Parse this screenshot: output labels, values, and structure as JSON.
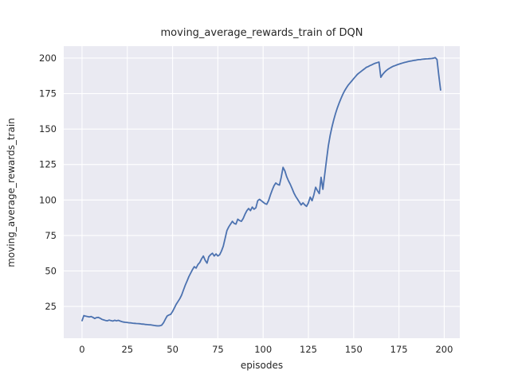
{
  "chart_data": {
    "type": "line",
    "title": "moving_average_rewards_train of DQN",
    "xlabel": "episodes",
    "ylabel": "moving_average_rewards_train",
    "x_ticks": [
      0,
      25,
      50,
      75,
      100,
      125,
      150,
      175,
      200
    ],
    "y_ticks": [
      25,
      50,
      75,
      100,
      125,
      150,
      175,
      200
    ],
    "xlim": [
      -10.1,
      208.6
    ],
    "ylim": [
      2.6,
      208.4
    ],
    "grid": "on",
    "legend": "none",
    "colors": {
      "line": "#4c72b0",
      "plot_background": "#eaeaf2",
      "grid": "#ffffff",
      "text": "#262626"
    },
    "series_name": "moving_average_rewards_train",
    "x": [
      0,
      1,
      2,
      3,
      4,
      5,
      6,
      7,
      8,
      9,
      10,
      11,
      12,
      13,
      14,
      15,
      16,
      17,
      18,
      19,
      20,
      21,
      22,
      23,
      24,
      25,
      26,
      27,
      28,
      29,
      30,
      31,
      32,
      33,
      34,
      35,
      36,
      37,
      38,
      39,
      40,
      41,
      42,
      43,
      44,
      45,
      46,
      47,
      48,
      49,
      50,
      51,
      52,
      53,
      54,
      55,
      56,
      57,
      58,
      59,
      60,
      61,
      62,
      63,
      64,
      65,
      66,
      67,
      68,
      69,
      70,
      71,
      72,
      73,
      74,
      75,
      76,
      77,
      78,
      79,
      80,
      81,
      82,
      83,
      84,
      85,
      86,
      87,
      88,
      89,
      90,
      91,
      92,
      93,
      94,
      95,
      96,
      97,
      98,
      99,
      100,
      101,
      102,
      103,
      104,
      105,
      106,
      107,
      108,
      109,
      110,
      111,
      112,
      113,
      114,
      115,
      116,
      117,
      118,
      119,
      120,
      121,
      122,
      123,
      124,
      125,
      126,
      127,
      128,
      129,
      130,
      131,
      132,
      133,
      134,
      135,
      136,
      137,
      138,
      139,
      140,
      141,
      142,
      143,
      144,
      145,
      146,
      147,
      148,
      149,
      150,
      151,
      152,
      153,
      154,
      155,
      156,
      157,
      158,
      159,
      160,
      161,
      162,
      163,
      164,
      165,
      166,
      167,
      168,
      169,
      170,
      171,
      172,
      173,
      174,
      175,
      176,
      177,
      178,
      179,
      180,
      181,
      182,
      183,
      184,
      185,
      186,
      187,
      188,
      189,
      190,
      191,
      192,
      193,
      194,
      195,
      196,
      197,
      198
    ],
    "values": [
      15,
      18.5,
      18.2,
      17.9,
      17.6,
      17.9,
      17.3,
      16.5,
      17.1,
      17.3,
      16.7,
      15.9,
      15.5,
      15.1,
      14.9,
      15.4,
      15,
      14.7,
      15.3,
      14.8,
      15.2,
      14.7,
      14.3,
      14,
      13.8,
      13.7,
      13.5,
      13.4,
      13.2,
      13.1,
      13,
      12.9,
      12.8,
      12.6,
      12.5,
      12.3,
      12.2,
      12.1,
      12,
      11.8,
      11.6,
      11.4,
      11.3,
      11.4,
      11.8,
      13.5,
      16,
      18.3,
      19,
      19.5,
      21.5,
      24,
      26.5,
      28.5,
      30.5,
      33,
      36.5,
      40,
      43,
      46,
      48.5,
      51,
      53,
      52,
      54.5,
      56,
      58.5,
      60.5,
      57.5,
      55.5,
      60,
      61.5,
      62.5,
      60.5,
      62,
      60.5,
      61.5,
      64,
      67.5,
      73,
      78.5,
      81,
      83,
      85,
      83.5,
      83,
      86.5,
      85.5,
      85,
      87,
      90,
      92.5,
      94,
      92.5,
      95,
      93.5,
      94.5,
      99.5,
      100.5,
      99.5,
      98.5,
      97.5,
      97,
      99.5,
      103.5,
      107,
      110,
      112,
      111,
      110.5,
      116,
      123,
      120.5,
      116.5,
      113.5,
      111,
      108,
      105,
      102.5,
      100.5,
      98.5,
      96.5,
      98,
      96.5,
      95.5,
      98,
      102,
      99.5,
      103.5,
      109,
      106.5,
      104.5,
      116,
      107.5,
      118,
      128,
      138,
      145.5,
      151.5,
      156.5,
      161,
      165,
      168.5,
      171.5,
      174.5,
      177,
      179,
      181,
      182.5,
      184,
      185.5,
      187,
      188.5,
      189.5,
      190.5,
      191.5,
      192.5,
      193.5,
      194,
      194.7,
      195.3,
      195.9,
      196.4,
      196.8,
      197.2,
      186.5,
      188.5,
      190,
      191.2,
      192.2,
      193,
      193.7,
      194.3,
      194.8,
      195.3,
      195.7,
      196.1,
      196.5,
      196.9,
      197.2,
      197.5,
      197.8,
      198,
      198.3,
      198.5,
      198.7,
      198.9,
      199,
      199.2,
      199.3,
      199.4,
      199.5,
      199.6,
      199.7,
      199.9,
      200.3,
      199,
      188,
      177.5
    ]
  }
}
